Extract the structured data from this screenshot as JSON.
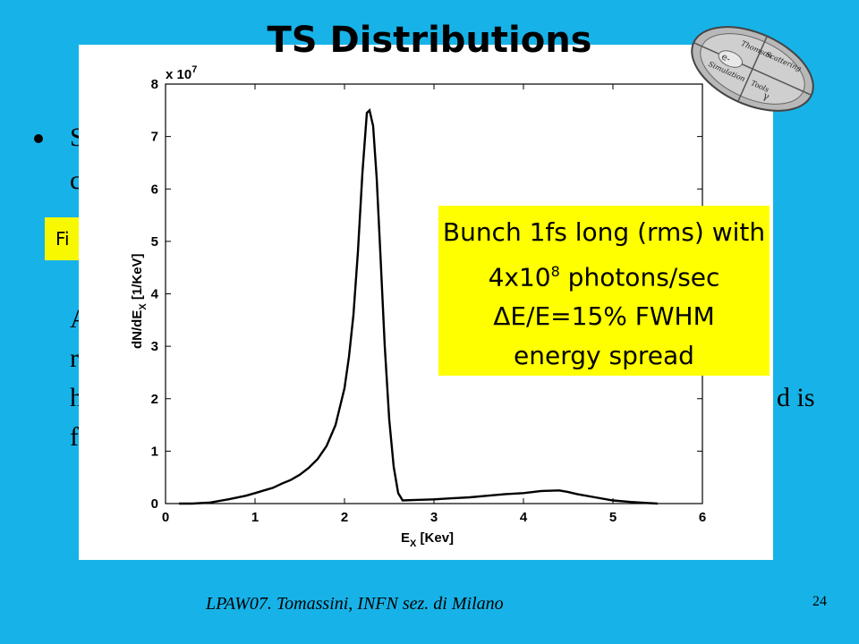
{
  "slide": {
    "title": "TS Distributions",
    "footer": "LPAW07. Tomassini, INFN sez. di Milano",
    "page_number": "24",
    "bg_fragments": {
      "s": "S",
      "c": "c",
      "a": "a",
      "a2": "A",
      "r": "r",
      "h": "h",
      "f": "f",
      "dis": "d is"
    },
    "yellow_label": "Fi",
    "callout": {
      "line1": "Bunch 1fs long (rms) with",
      "line2_base": "4x10",
      "line2_exp": "8",
      "line2_rest": " photons/sec",
      "line3": "ΔE/E=15% FWHM",
      "line4": "energy spread"
    }
  },
  "chart_data": {
    "type": "line",
    "xlabel": "E",
    "xlabel_sub": "X",
    "xlabel_unit": " [Kev]",
    "ylabel": "dN/dE",
    "ylabel_sub": "X",
    "ylabel_unit": " [1/KeV]",
    "y_multiplier_label": "x 10",
    "y_multiplier_exp": "7",
    "xlim": [
      0,
      6
    ],
    "ylim": [
      0,
      8
    ],
    "xticks": [
      "0",
      "1",
      "2",
      "3",
      "4",
      "5",
      "6"
    ],
    "yticks": [
      "0",
      "1",
      "2",
      "3",
      "4",
      "5",
      "6",
      "7",
      "8"
    ],
    "grid": false,
    "series": [
      {
        "x": [
          0.15,
          0.3,
          0.5,
          0.7,
          0.9,
          1.0,
          1.1,
          1.2,
          1.3,
          1.4,
          1.5,
          1.6,
          1.7,
          1.8,
          1.9,
          2.0,
          2.05,
          2.1,
          2.15,
          2.2,
          2.25,
          2.28,
          2.32,
          2.36,
          2.4,
          2.45,
          2.5,
          2.55,
          2.6,
          2.65,
          2.8,
          3.0,
          3.2,
          3.4,
          3.6,
          3.8,
          4.0,
          4.2,
          4.4,
          4.5,
          4.6,
          4.8,
          5.0,
          5.2,
          5.4,
          5.5
        ],
        "y": [
          0.0,
          0.0,
          0.02,
          0.08,
          0.15,
          0.2,
          0.25,
          0.3,
          0.38,
          0.45,
          0.55,
          0.68,
          0.85,
          1.1,
          1.5,
          2.2,
          2.8,
          3.6,
          4.8,
          6.3,
          7.45,
          7.5,
          7.2,
          6.2,
          4.8,
          3.0,
          1.6,
          0.7,
          0.2,
          0.06,
          0.07,
          0.08,
          0.1,
          0.12,
          0.15,
          0.18,
          0.2,
          0.24,
          0.25,
          0.22,
          0.18,
          0.12,
          0.06,
          0.03,
          0.01,
          0.0
        ]
      }
    ]
  }
}
